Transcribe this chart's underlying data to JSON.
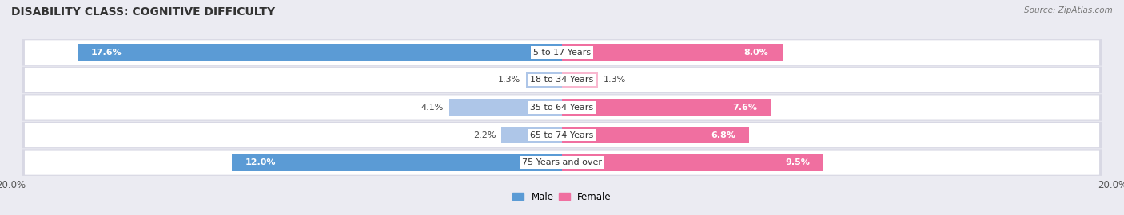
{
  "title": "DISABILITY CLASS: COGNITIVE DIFFICULTY",
  "source": "Source: ZipAtlas.com",
  "categories": [
    "5 to 17 Years",
    "18 to 34 Years",
    "35 to 64 Years",
    "65 to 74 Years",
    "75 Years and over"
  ],
  "male_values": [
    17.6,
    1.3,
    4.1,
    2.2,
    12.0
  ],
  "female_values": [
    8.0,
    1.3,
    7.6,
    6.8,
    9.5
  ],
  "male_colors": [
    "#5b9bd5",
    "#aec6e8",
    "#aec6e8",
    "#aec6e8",
    "#5b9bd5"
  ],
  "female_colors": [
    "#f06fa0",
    "#f9b8d0",
    "#f06fa0",
    "#f06fa0",
    "#f06fa0"
  ],
  "max_val": 20.0,
  "bg_color": "#ebebf2",
  "title_fontsize": 10,
  "label_fontsize": 8,
  "tick_fontsize": 8.5,
  "legend_fontsize": 8.5
}
